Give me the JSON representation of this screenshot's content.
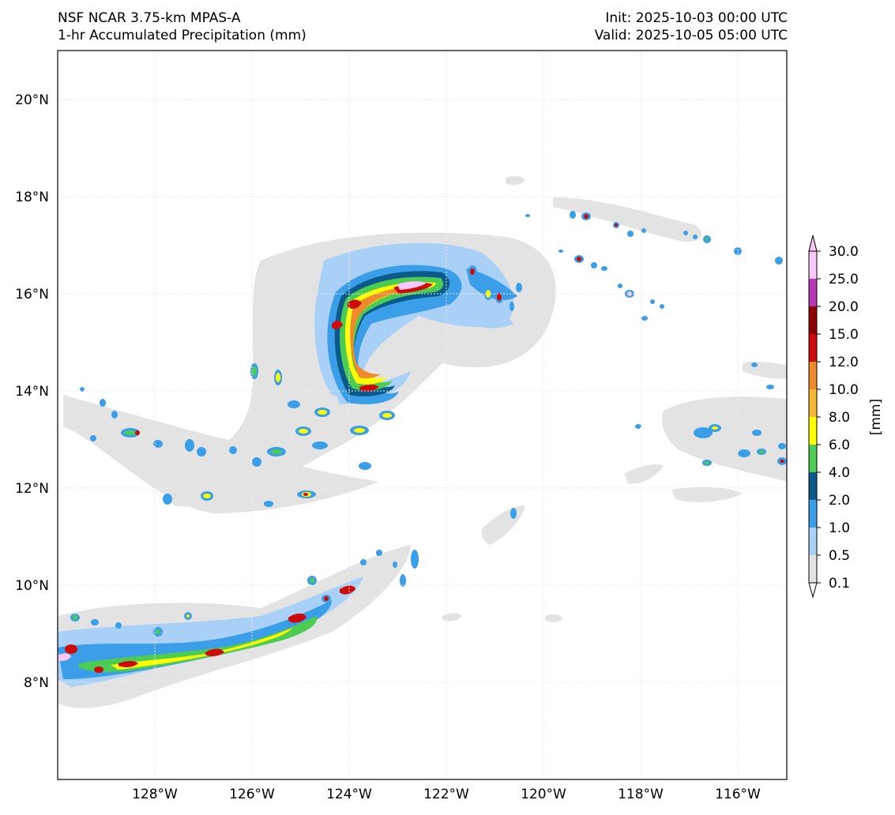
{
  "header": {
    "title_left_line1": "NSF NCAR 3.75-km MPAS-A",
    "title_left_line2": "1-hr Accumulated Precipitation (mm)",
    "title_right_line1": "Init: 2025-10-03 00:00 UTC",
    "title_right_line2": "Valid: 2025-10-05 05:00 UTC"
  },
  "map": {
    "lon_range": [
      -130,
      -115
    ],
    "lat_range": [
      6,
      21
    ],
    "lon_ticks": [
      {
        "value": -128,
        "label": "128°W"
      },
      {
        "value": -126,
        "label": "126°W"
      },
      {
        "value": -124,
        "label": "124°W"
      },
      {
        "value": -122,
        "label": "122°W"
      },
      {
        "value": -120,
        "label": "120°W"
      },
      {
        "value": -118,
        "label": "118°W"
      },
      {
        "value": -116,
        "label": "116°W"
      }
    ],
    "lat_ticks": [
      {
        "value": 8,
        "label": "8°N"
      },
      {
        "value": 10,
        "label": "10°N"
      },
      {
        "value": 12,
        "label": "12°N"
      },
      {
        "value": 14,
        "label": "14°N"
      },
      {
        "value": 16,
        "label": "16°N"
      },
      {
        "value": 18,
        "label": "18°N"
      },
      {
        "value": 20,
        "label": "20°N"
      }
    ]
  },
  "colorbar": {
    "unit_label": "[mm]",
    "levels": [
      "0.1",
      "0.5",
      "1.0",
      "2.0",
      "4.0",
      "6.0",
      "8.0",
      "10.0",
      "12.0",
      "15.0",
      "20.0",
      "25.0",
      "30.0"
    ],
    "colors": [
      "#e3e3e3",
      "#a9d1f7",
      "#3a9ee8",
      "#0a5a8c",
      "#4ccc52",
      "#ffff00",
      "#f8b735",
      "#ee8a2b",
      "#cf0a0a",
      "#8e0000",
      "#b836b8",
      "#f9c7f9"
    ],
    "under_color": "#ffffff",
    "over_color": "#f9c7f9"
  },
  "colors": {
    "trace": "#e3e3e3",
    "light_blue": "#a9d1f7",
    "blue": "#3a9ee8",
    "dark_blue": "#0a5a8c",
    "green": "#4ccc52",
    "yellow": "#ffff00",
    "orange": "#ee8a2b",
    "red": "#cf0a0a",
    "dark_red": "#8e0000",
    "pink": "#f9c7f9"
  }
}
